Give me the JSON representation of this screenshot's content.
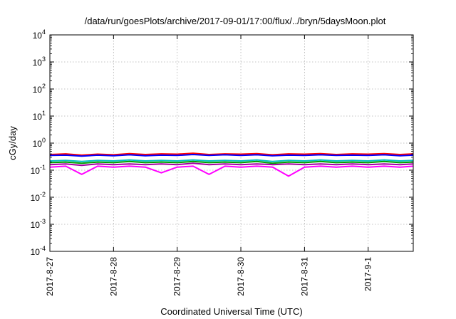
{
  "chart_data": {
    "type": "line",
    "title": "/data/run/goesPlots/archive/2017-09-01/17:00/flux/../bryn/5daysMoon.plot",
    "xlabel": "Coordinated Universal Time (UTC)",
    "ylabel": "cGy/day",
    "yscale": "log",
    "ylim": [
      0.0001,
      10000
    ],
    "xlim": [
      "2017-08-27T00:00",
      "2017-09-01T17:00"
    ],
    "grid": true,
    "legend": "none",
    "x_ticks": [
      {
        "t": "2017-08-27T00:00",
        "label": "2017-8-27"
      },
      {
        "t": "2017-08-28T00:00",
        "label": "2017-8-28"
      },
      {
        "t": "2017-08-29T00:00",
        "label": "2017-8-29"
      },
      {
        "t": "2017-08-30T00:00",
        "label": "2017-8-30"
      },
      {
        "t": "2017-08-31T00:00",
        "label": "2017-8-31"
      },
      {
        "t": "2017-09-01T00:00",
        "label": "2017-9-1"
      }
    ],
    "y_ticks": [
      {
        "v": 0.0001,
        "base": "10",
        "exp": "-4"
      },
      {
        "v": 0.001,
        "base": "10",
        "exp": "-3"
      },
      {
        "v": 0.01,
        "base": "10",
        "exp": "-2"
      },
      {
        "v": 0.1,
        "base": "10",
        "exp": "-1"
      },
      {
        "v": 1,
        "base": "10",
        "exp": "0"
      },
      {
        "v": 10,
        "base": "10",
        "exp": "1"
      },
      {
        "v": 100,
        "base": "10",
        "exp": "2"
      },
      {
        "v": 1000,
        "base": "10",
        "exp": "3"
      },
      {
        "v": 10000,
        "base": "10",
        "exp": "4"
      }
    ],
    "x": [
      "2017-08-27T00:00",
      "2017-08-27T06:00",
      "2017-08-27T12:00",
      "2017-08-27T18:00",
      "2017-08-28T00:00",
      "2017-08-28T06:00",
      "2017-08-28T12:00",
      "2017-08-28T18:00",
      "2017-08-29T00:00",
      "2017-08-29T06:00",
      "2017-08-29T12:00",
      "2017-08-29T18:00",
      "2017-08-30T00:00",
      "2017-08-30T06:00",
      "2017-08-30T12:00",
      "2017-08-30T18:00",
      "2017-08-31T00:00",
      "2017-08-31T06:00",
      "2017-08-31T12:00",
      "2017-08-31T18:00",
      "2017-09-01T00:00",
      "2017-09-01T06:00",
      "2017-09-01T12:00",
      "2017-09-01T17:00"
    ],
    "series": [
      {
        "color": "#ff0000",
        "values": [
          0.38,
          0.4,
          0.36,
          0.39,
          0.37,
          0.41,
          0.38,
          0.4,
          0.39,
          0.42,
          0.38,
          0.4,
          0.39,
          0.41,
          0.37,
          0.4,
          0.39,
          0.41,
          0.38,
          0.4,
          0.39,
          0.41,
          0.38,
          0.4
        ]
      },
      {
        "color": "#0000ff",
        "values": [
          0.35,
          0.36,
          0.33,
          0.36,
          0.34,
          0.37,
          0.34,
          0.36,
          0.35,
          0.38,
          0.35,
          0.37,
          0.35,
          0.37,
          0.34,
          0.36,
          0.35,
          0.37,
          0.35,
          0.36,
          0.35,
          0.37,
          0.34,
          0.36
        ]
      },
      {
        "color": "#00c0c0",
        "values": [
          0.22,
          0.23,
          0.21,
          0.23,
          0.22,
          0.24,
          0.22,
          0.23,
          0.22,
          0.24,
          0.22,
          0.23,
          0.22,
          0.24,
          0.21,
          0.23,
          0.22,
          0.24,
          0.22,
          0.23,
          0.22,
          0.24,
          0.22,
          0.23
        ]
      },
      {
        "color": "#00a000",
        "values": [
          0.19,
          0.2,
          0.18,
          0.2,
          0.19,
          0.21,
          0.19,
          0.2,
          0.19,
          0.21,
          0.19,
          0.2,
          0.19,
          0.21,
          0.18,
          0.2,
          0.19,
          0.21,
          0.19,
          0.2,
          0.19,
          0.21,
          0.19,
          0.2
        ]
      },
      {
        "color": "#a000a0",
        "values": [
          0.16,
          0.17,
          0.15,
          0.17,
          0.16,
          0.17,
          0.16,
          0.17,
          0.16,
          0.18,
          0.16,
          0.17,
          0.16,
          0.17,
          0.16,
          0.17,
          0.16,
          0.17,
          0.16,
          0.17,
          0.16,
          0.17,
          0.16,
          0.17
        ]
      },
      {
        "color": "#ff00ff",
        "values": [
          0.13,
          0.14,
          0.07,
          0.14,
          0.13,
          0.14,
          0.13,
          0.08,
          0.13,
          0.14,
          0.07,
          0.14,
          0.13,
          0.14,
          0.13,
          0.06,
          0.13,
          0.14,
          0.13,
          0.14,
          0.13,
          0.14,
          0.13,
          0.14
        ]
      }
    ]
  }
}
